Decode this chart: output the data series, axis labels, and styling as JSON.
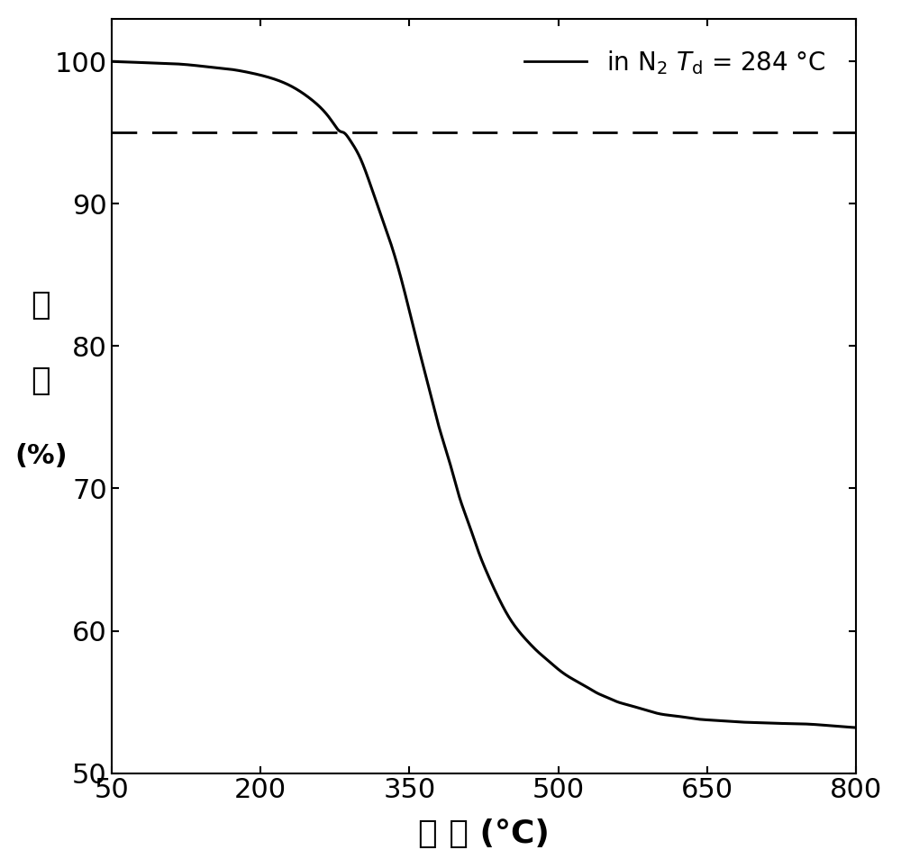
{
  "xlabel_parts": [
    "温 度 (°C)"
  ],
  "ylabel_line1": "重",
  "ylabel_line2": "量",
  "ylabel_line3": "(%)",
  "xlim": [
    50,
    800
  ],
  "ylim": [
    50,
    103
  ],
  "yticks": [
    50,
    60,
    70,
    80,
    90,
    100
  ],
  "xticks": [
    50,
    200,
    350,
    500,
    650,
    800
  ],
  "dashed_line_y": 95,
  "background_color": "#ffffff",
  "line_color": "#000000",
  "curve_x": [
    50,
    70,
    90,
    110,
    130,
    150,
    170,
    190,
    210,
    230,
    250,
    260,
    270,
    275,
    280,
    284,
    290,
    300,
    310,
    320,
    330,
    340,
    350,
    360,
    370,
    380,
    390,
    400,
    410,
    420,
    430,
    440,
    450,
    460,
    470,
    480,
    490,
    500,
    510,
    520,
    530,
    540,
    550,
    560,
    570,
    580,
    590,
    600,
    620,
    640,
    660,
    680,
    700,
    720,
    750,
    780,
    800
  ],
  "curve_y": [
    100.0,
    99.95,
    99.9,
    99.85,
    99.75,
    99.6,
    99.45,
    99.2,
    98.85,
    98.3,
    97.4,
    96.8,
    96.0,
    95.5,
    95.1,
    95.0,
    94.5,
    93.3,
    91.5,
    89.5,
    87.5,
    85.2,
    82.5,
    79.7,
    77.0,
    74.3,
    72.0,
    69.5,
    67.5,
    65.5,
    63.8,
    62.3,
    61.0,
    60.0,
    59.2,
    58.5,
    57.9,
    57.3,
    56.8,
    56.4,
    56.0,
    55.6,
    55.3,
    55.0,
    54.8,
    54.6,
    54.4,
    54.2,
    54.0,
    53.8,
    53.7,
    53.6,
    53.55,
    53.5,
    53.45,
    53.3,
    53.2
  ]
}
